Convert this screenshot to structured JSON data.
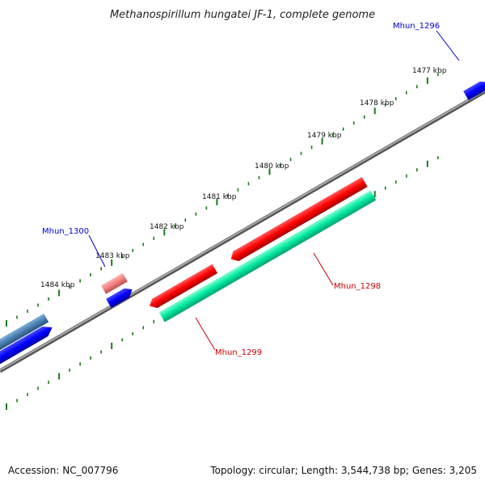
{
  "title": "Methanospirillum hungatei JF-1, complete genome",
  "footer": {
    "accession": "Accession: NC_007796",
    "summary": "Topology: circular; Length: 3,544,738 bp; Genes: 3,205"
  },
  "ticks": [
    {
      "label": "1477 kbp"
    },
    {
      "label": "1478 kbp"
    },
    {
      "label": "1479 kbp"
    },
    {
      "label": "1480 kbp"
    },
    {
      "label": "1481 kbp"
    },
    {
      "label": "1482 kbp"
    },
    {
      "label": "1483 kbp"
    },
    {
      "label": "1484 kbp"
    }
  ],
  "genes": [
    {
      "name": "Mhun_1296",
      "color": "#0000cc"
    },
    {
      "name": "Mhun_1298",
      "color": "#cc0000"
    },
    {
      "name": "Mhun_1299",
      "color": "#cc0000"
    },
    {
      "name": "Mhun_1300",
      "color": "#0000cc"
    }
  ],
  "colors": {
    "backbone": "#808080",
    "forward_cds": "#ff0000",
    "forward_cds_light": "#f08080",
    "reverse_cds": "#0000ff",
    "gene_teal": "#00e8a0",
    "gene_steel": "#4a7fb0",
    "tick": "#1a7a1a"
  }
}
